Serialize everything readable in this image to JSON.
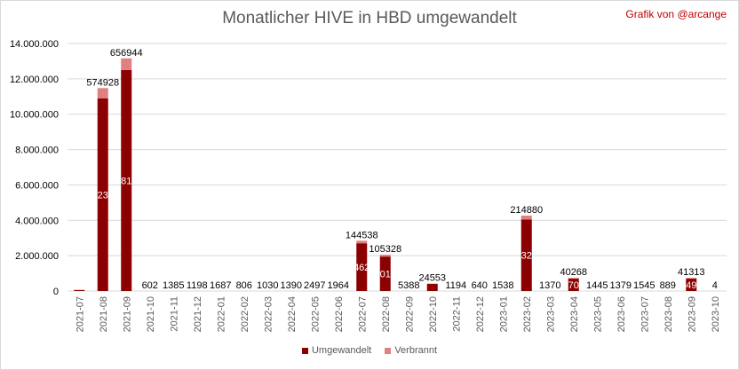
{
  "chart_data": {
    "type": "bar",
    "stacked": true,
    "title": "Monatlicher HIVE in HBD umgewandelt",
    "credit": "Grafik von @arcange",
    "ylim": [
      0,
      14000000
    ],
    "yticks": [
      "0",
      "2.000.000",
      "4.000.000",
      "6.000.000",
      "8.000.000",
      "10.000.000",
      "12.000.000",
      "14.000.000"
    ],
    "grid": true,
    "legend_position": "bottom",
    "categories": [
      "2021-07",
      "2021-08",
      "2021-09",
      "2021-10",
      "2021-11",
      "2021-12",
      "2022-01",
      "2022-02",
      "2022-03",
      "2022-04",
      "2022-05",
      "2022-06",
      "2022-07",
      "2022-08",
      "2022-09",
      "2022-10",
      "2022-11",
      "2022-12",
      "2023-01",
      "2023-02",
      "2023-03",
      "2023-04",
      "2023-05",
      "2023-06",
      "2023-07",
      "2023-08",
      "2023-09",
      "2023-10"
    ],
    "series": [
      {
        "name": "Umgewandelt",
        "color": "#8b0000",
        "values": [
          60000,
          10900000,
          12500000,
          0,
          0,
          0,
          0,
          0,
          0,
          0,
          0,
          0,
          2700000,
          1950000,
          0,
          400000,
          0,
          0,
          0,
          4050000,
          0,
          700000,
          0,
          0,
          0,
          0,
          700000,
          0
        ],
        "labels": [
          "",
          "23",
          "81",
          "",
          "",
          "",
          "",
          "",
          "",
          "",
          "",
          "",
          "462",
          "01",
          "",
          "",
          "",
          "",
          "",
          "32",
          "",
          "70",
          "",
          "",
          "",
          "",
          "49",
          ""
        ]
      },
      {
        "name": "Verbrannt",
        "color": "#e08080",
        "values": [
          0,
          574928,
          656944,
          602,
          1385,
          1198,
          1687,
          806,
          1030,
          1390,
          2497,
          1964,
          144538,
          105328,
          5388,
          24553,
          1194,
          640,
          1538,
          214880,
          1370,
          40268,
          1445,
          1379,
          1545,
          889,
          41313,
          4
        ],
        "labels": [
          "",
          "574928",
          "656944",
          "602",
          "1385",
          "1198",
          "1687",
          "806",
          "1030",
          "1390",
          "2497",
          "1964",
          "144538",
          "105328",
          "5388",
          "24553",
          "1194",
          "640",
          "1538",
          "214880",
          "1370",
          "40268",
          "1445",
          "1379",
          "1545",
          "889",
          "41313",
          "4"
        ]
      }
    ]
  }
}
